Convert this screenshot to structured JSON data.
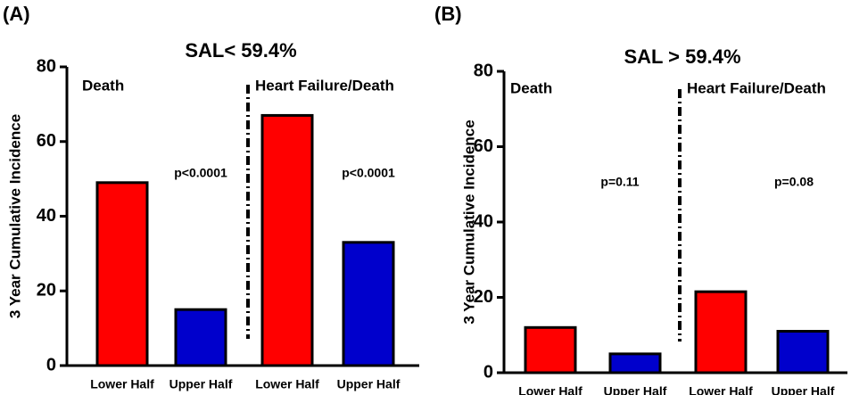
{
  "chart_data": [
    {
      "type": "bar",
      "panel_label": "(A)",
      "title": "SAL< 59.4%",
      "y_label": "3 Year Cumulative Incidence",
      "categories": [
        "Lower Half",
        "Upper Half",
        "Lower Half",
        "Upper Half"
      ],
      "values": [
        49,
        15,
        67,
        33
      ],
      "colors": [
        "#ff0000",
        "#0000cc",
        "#ff0000",
        "#0000cc"
      ],
      "ylim": [
        0,
        80
      ],
      "yticks": [
        0,
        20,
        40,
        60,
        80
      ],
      "annotations": [
        "Death",
        "Heart Failure/Death",
        "p<0.0001",
        "p<0.0001"
      ]
    },
    {
      "type": "bar",
      "panel_label": "(B)",
      "title": "SAL > 59.4%",
      "y_label": "3 Year Cumulative Incidence",
      "categories": [
        "Lower Half",
        "Upper Half",
        "Lower Half",
        "Upper Half"
      ],
      "values": [
        12,
        5,
        21.5,
        11
      ],
      "colors": [
        "#ff0000",
        "#0000cc",
        "#ff0000",
        "#0000cc"
      ],
      "ylim": [
        0,
        80
      ],
      "yticks": [
        0,
        20,
        40,
        60,
        80
      ],
      "annotations": [
        "Death",
        "Heart Failure/Death",
        "p=0.11",
        "p=0.08"
      ]
    }
  ]
}
